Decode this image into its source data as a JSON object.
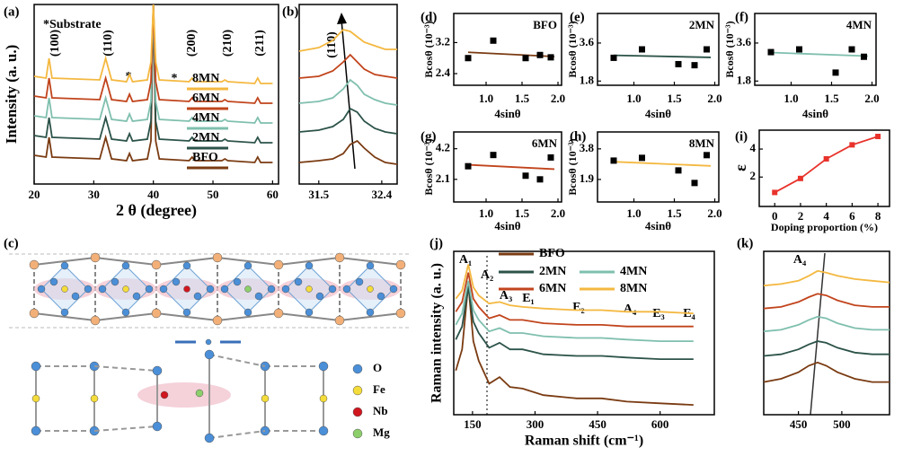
{
  "chart_data": [
    {
      "type": "line",
      "panel": "(a)",
      "xlabel": "2 θ (degree)",
      "ylabel": "Intensity (a. u.)",
      "x": [
        20,
        22,
        22.5,
        23,
        31,
        32,
        33,
        35.5,
        36,
        36.5,
        39,
        39.6,
        40,
        40.4,
        41,
        46,
        46.5,
        47,
        51.5,
        52,
        52.5,
        57,
        57.5,
        58,
        60
      ],
      "xlim": [
        20,
        61
      ],
      "xticks": [
        20,
        30,
        40,
        50,
        60
      ],
      "ylim": [
        0,
        100
      ],
      "series": [
        {
          "name": "BFO",
          "color": "#7a3b12",
          "values": [
            16,
            15,
            26,
            15,
            14,
            26,
            14,
            13,
            17,
            13,
            14,
            24,
            100,
            24,
            14,
            13,
            15,
            13,
            13,
            14,
            13,
            12,
            15,
            12,
            12
          ]
        },
        {
          "name": "2MN",
          "color": "#2c5349",
          "values": [
            27,
            26,
            37,
            26,
            25,
            37,
            25,
            24,
            28,
            24,
            25,
            35,
            100,
            35,
            25,
            24,
            26,
            24,
            24,
            25,
            24,
            23,
            26,
            23,
            23
          ]
        },
        {
          "name": "4MN",
          "color": "#7fbfae",
          "values": [
            38,
            37,
            48,
            37,
            36,
            48,
            36,
            35,
            39,
            35,
            36,
            46,
            100,
            46,
            36,
            35,
            37,
            35,
            35,
            36,
            35,
            34,
            37,
            34,
            34
          ]
        },
        {
          "name": "6MN",
          "color": "#c1441c",
          "values": [
            49,
            48,
            59,
            48,
            47,
            59,
            47,
            46,
            50,
            46,
            47,
            57,
            100,
            57,
            47,
            46,
            48,
            46,
            46,
            47,
            46,
            45,
            48,
            45,
            45
          ]
        },
        {
          "name": "8MN",
          "color": "#f4b840",
          "values": [
            60,
            59,
            70,
            59,
            58,
            70,
            58,
            57,
            61,
            57,
            58,
            68,
            100,
            68,
            58,
            57,
            59,
            57,
            57,
            58,
            57,
            56,
            59,
            56,
            56
          ]
        }
      ],
      "annotations": [
        "*Substrate",
        "(100)",
        "(110)",
        "*",
        "*",
        "(200)",
        "(210)",
        "(211)"
      ]
    },
    {
      "type": "line",
      "panel": "(b)",
      "x": [
        31.22,
        31.5,
        31.7,
        31.85,
        31.95,
        32.05,
        32.15,
        32.3,
        32.45,
        32.62
      ],
      "xlim": [
        31.22,
        32.62
      ],
      "xticks": [
        31.5,
        32.4
      ],
      "ylim": [
        0,
        100
      ],
      "series": [
        {
          "name": "BFO",
          "color": "#7a3b12",
          "values": [
            12,
            13,
            14,
            17,
            22,
            24,
            20,
            15,
            12,
            11
          ]
        },
        {
          "name": "2MN",
          "color": "#2c5349",
          "values": [
            29,
            30,
            32,
            36,
            42,
            40,
            35,
            31,
            29,
            28
          ]
        },
        {
          "name": "4MN",
          "color": "#7fbfae",
          "values": [
            45,
            46,
            48,
            53,
            58,
            55,
            50,
            47,
            45,
            44
          ]
        },
        {
          "name": "6MN",
          "color": "#c1441c",
          "values": [
            59,
            60,
            63,
            68,
            72,
            68,
            64,
            61,
            60,
            59
          ]
        },
        {
          "name": "8MN",
          "color": "#f4b840",
          "values": [
            74,
            76,
            80,
            86,
            85,
            82,
            79,
            77,
            75,
            75
          ]
        }
      ],
      "annotations": [
        "(110)"
      ]
    },
    {
      "type": "scatter",
      "panel": "(d)",
      "label": "BFO",
      "xlabel": "4sinθ",
      "ylabel": "Bcosθ (10⁻³)",
      "x": [
        0.75,
        1.1,
        1.55,
        1.75,
        1.9
      ],
      "values": [
        2.8,
        3.25,
        2.8,
        2.88,
        2.82
      ],
      "color": "#000000",
      "fit": {
        "x": [
          0.75,
          1.95
        ],
        "y": [
          2.95,
          2.84
        ],
        "color": "#7a3b12"
      },
      "xlim": [
        0.55,
        2.05
      ],
      "xticks": [
        {
          "value": 1,
          "label": "1.0"
        },
        1.5,
        {
          "value": 2,
          "label": "2.0"
        }
      ],
      "ylim": [
        2.1,
        3.95
      ],
      "yticks": [
        2.4,
        3.2
      ]
    },
    {
      "type": "scatter",
      "panel": "(e)",
      "label": "2MN",
      "xlabel": "4sinθ",
      "ylabel": "Bcosθ (10⁻³)",
      "x": [
        0.75,
        1.1,
        1.55,
        1.75,
        1.9
      ],
      "values": [
        2.9,
        3.3,
        2.6,
        2.55,
        3.3
      ],
      "color": "#000000",
      "fit": {
        "x": [
          0.75,
          1.95
        ],
        "y": [
          3.02,
          2.92
        ],
        "color": "#2c5349"
      },
      "xlim": [
        0.55,
        2.05
      ],
      "xticks": [
        {
          "value": 1,
          "label": "1.0"
        },
        1.5,
        {
          "value": 2,
          "label": "2.0"
        }
      ],
      "ylim": [
        1.6,
        5.0
      ],
      "yticks": [
        1.8,
        3.6
      ]
    },
    {
      "type": "scatter",
      "panel": "(f)",
      "label": "4MN",
      "xlabel": "4sinθ",
      "ylabel": "Bcosθ (10⁻³)",
      "x": [
        0.75,
        1.1,
        1.55,
        1.75,
        1.9
      ],
      "values": [
        3.17,
        3.3,
        2.2,
        3.3,
        2.95
      ],
      "color": "#000000",
      "fit": {
        "x": [
          0.75,
          1.95
        ],
        "y": [
          3.15,
          2.98
        ],
        "color": "#7fbfae"
      },
      "xlim": [
        0.55,
        2.05
      ],
      "xticks": [
        {
          "value": 1,
          "label": "1.0"
        },
        1.5,
        {
          "value": 2,
          "label": "2.0"
        }
      ],
      "ylim": [
        1.6,
        5.0
      ],
      "yticks": [
        1.8,
        3.6
      ]
    },
    {
      "type": "scatter",
      "panel": "(g)",
      "label": "6MN",
      "xlabel": "4sinθ",
      "ylabel": "Bcosθ (10⁻³)",
      "x": [
        0.75,
        1.1,
        1.55,
        1.75,
        1.9
      ],
      "values": [
        3.0,
        3.77,
        2.35,
        2.1,
        3.6
      ],
      "color": "#000000",
      "fit": {
        "x": [
          0.75,
          1.95
        ],
        "y": [
          3.1,
          2.8
        ],
        "color": "#c1441c"
      },
      "xlim": [
        0.55,
        2.05
      ],
      "xticks": [
        {
          "value": 1,
          "label": "1.0"
        },
        1.5,
        {
          "value": 2,
          "label": "2.0"
        }
      ],
      "ylim": [
        0.55,
        5.35
      ],
      "yticks": [
        2.1,
        4.2
      ]
    },
    {
      "type": "scatter",
      "panel": "(h)",
      "label": "8MN",
      "xlabel": "4sinθ",
      "ylabel": "Bcosθ (10⁻³)",
      "x": [
        0.75,
        1.1,
        1.55,
        1.75,
        1.9
      ],
      "values": [
        3.07,
        3.24,
        2.46,
        1.68,
        3.41
      ],
      "color": "#000000",
      "fit": {
        "x": [
          0.75,
          1.95
        ],
        "y": [
          3.0,
          2.74
        ],
        "color": "#f4b840"
      },
      "xlim": [
        0.55,
        2.05
      ],
      "xticks": [
        {
          "value": 1,
          "label": "1.0"
        },
        1.5,
        {
          "value": 2,
          "label": "2.0"
        }
      ],
      "ylim": [
        0.5,
        4.85
      ],
      "yticks": [
        1.9,
        3.8
      ]
    },
    {
      "type": "line",
      "panel": "(i)",
      "xlabel": "Doping proportion (%)",
      "ylabel": "ε",
      "x": [
        0,
        2,
        4,
        6,
        8
      ],
      "xlim": [
        -1.2,
        8.9
      ],
      "xticks": [
        0,
        2,
        4,
        6,
        8
      ],
      "ylim": [
        -0.1,
        5.35
      ],
      "yticks": [
        2,
        4
      ],
      "markers": true,
      "series": [
        {
          "color": "#e8322b",
          "values": [
            0.9,
            1.9,
            3.3,
            4.3,
            4.9
          ]
        }
      ]
    },
    {
      "type": "line",
      "panel": "(j)",
      "xlabel": "Raman shift (cm⁻¹)",
      "ylabel": "Raman intensity (a. u.)",
      "x": [
        110,
        125,
        140,
        152,
        165,
        190,
        215,
        240,
        270,
        320,
        400,
        460,
        520,
        600,
        680
      ],
      "xlim": [
        105,
        730
      ],
      "xticks": [
        150,
        300,
        450,
        600
      ],
      "ylim": [
        0,
        100
      ],
      "series": [
        {
          "name": "BFO",
          "color": "#7a3b12",
          "values": [
            27,
            40,
            80,
            45,
            33,
            19,
            23,
            17,
            16,
            12,
            10,
            10,
            8,
            7,
            6
          ]
        },
        {
          "name": "2MN",
          "color": "#2c5349",
          "values": [
            46,
            54,
            78,
            57,
            50,
            41,
            44,
            40,
            40,
            37,
            36,
            36,
            35,
            34,
            34
          ]
        },
        {
          "name": "4MN",
          "color": "#7fbfae",
          "values": [
            55,
            62,
            82,
            64,
            58,
            51,
            53,
            50,
            50,
            48,
            47,
            47,
            46,
            45,
            45
          ]
        },
        {
          "name": "6MN",
          "color": "#c1441c",
          "values": [
            63,
            69,
            87,
            71,
            66,
            59,
            61,
            58,
            58,
            56,
            55,
            55,
            54,
            54,
            54
          ]
        },
        {
          "name": "8MN",
          "color": "#f4b840",
          "values": [
            71,
            76,
            92,
            78,
            73,
            68,
            69,
            67,
            66,
            65,
            64,
            64,
            63,
            63,
            62
          ]
        }
      ],
      "annotations": [
        "A₁",
        "A₂",
        "A₃",
        "E₁",
        "E₂",
        "A₄",
        "E₃",
        "E₄"
      ]
    },
    {
      "type": "line",
      "panel": "(k)",
      "x": [
        410,
        430,
        450,
        462,
        472,
        482,
        495,
        515,
        535,
        555
      ],
      "xlim": [
        410,
        555
      ],
      "xticks": [
        450,
        500
      ],
      "ylim": [
        0,
        100
      ],
      "series": [
        {
          "name": "BFO",
          "color": "#7a3b12",
          "values": [
            20,
            22,
            26,
            30,
            32,
            30,
            26,
            22,
            20,
            20
          ]
        },
        {
          "name": "2MN",
          "color": "#2c5349",
          "values": [
            36,
            37,
            40,
            43,
            45,
            44,
            41,
            38,
            37,
            37
          ]
        },
        {
          "name": "4MN",
          "color": "#7fbfae",
          "values": [
            51,
            52,
            55,
            58,
            60,
            59,
            56,
            53,
            52,
            52
          ]
        },
        {
          "name": "6MN",
          "color": "#c1441c",
          "values": [
            65,
            66,
            69,
            72,
            74,
            73,
            70,
            67,
            66,
            66
          ]
        },
        {
          "name": "8MN",
          "color": "#f4b840",
          "values": [
            79,
            80,
            82,
            85,
            88,
            87,
            85,
            83,
            82,
            81
          ]
        }
      ],
      "annotations": [
        "A₄"
      ]
    }
  ],
  "diagram": {
    "panel": "(c)",
    "legend": [
      "O",
      "Fe",
      "Nb",
      "Mg"
    ]
  }
}
